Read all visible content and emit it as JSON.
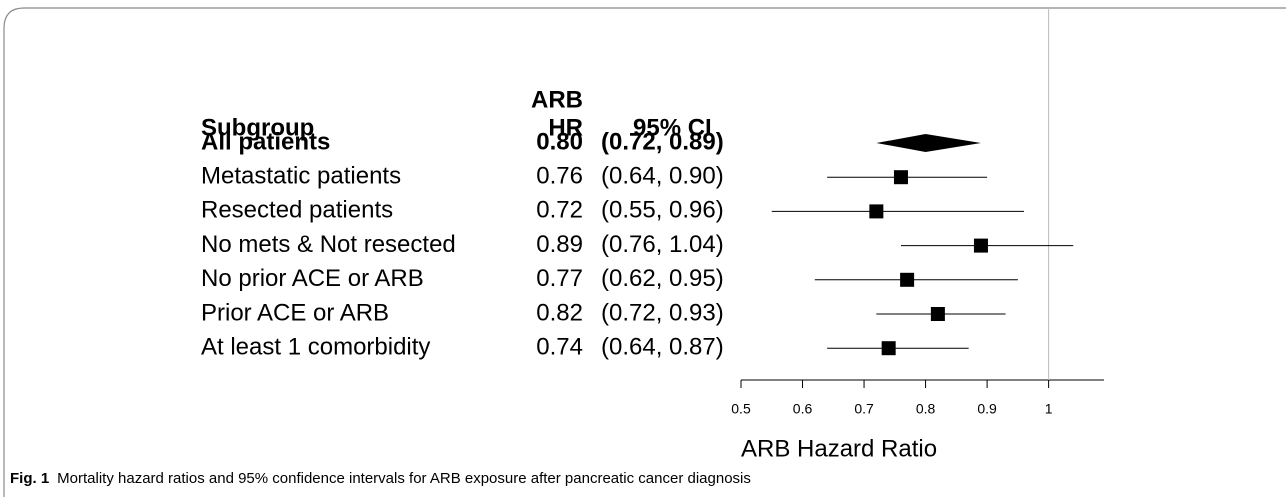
{
  "chart_data": {
    "type": "forest",
    "column_headers": {
      "subgroup": "Subgroup",
      "hr_top": "ARB",
      "hr": "HR",
      "ci": "95% CI"
    },
    "categories": [
      "All patients",
      "Metastatic patients",
      "Resected patients",
      "No mets & Not resected",
      "No prior ACE or ARB",
      "Prior ACE or ARB",
      "At least 1 comorbidity"
    ],
    "values": [
      0.8,
      0.76,
      0.72,
      0.89,
      0.77,
      0.82,
      0.74
    ],
    "value_labels": [
      "0.80",
      "0.76",
      "0.72",
      "0.89",
      "0.77",
      "0.82",
      "0.74"
    ],
    "lower": [
      0.72,
      0.64,
      0.55,
      0.76,
      0.62,
      0.72,
      0.64
    ],
    "upper": [
      0.89,
      0.9,
      0.96,
      1.04,
      0.95,
      0.93,
      0.87
    ],
    "ci_labels": [
      "(0.72, 0.89)",
      "(0.64, 0.90)",
      "(0.55, 0.96)",
      "(0.76, 1.04)",
      "(0.62, 0.95)",
      "(0.72, 0.93)",
      "(0.64, 0.87)"
    ],
    "xlim": [
      0.5,
      1.09
    ],
    "xticks": [
      0.5,
      0.6,
      0.7,
      0.8,
      0.9,
      1
    ],
    "reference_line": 1,
    "xlabel": "ARB Hazard Ratio",
    "color": "#000000"
  },
  "caption": {
    "label": "Fig. 1",
    "text": "Mortality hazard ratios and 95% confidence intervals for ARB exposure after pancreatic cancer diagnosis"
  }
}
